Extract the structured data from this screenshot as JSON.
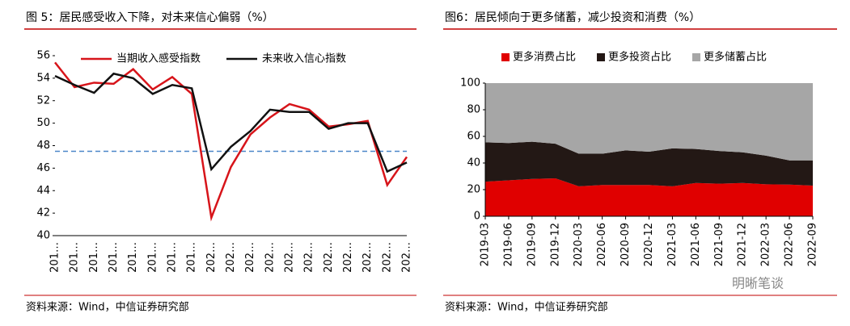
{
  "chart_data": [
    {
      "type": "line",
      "title": "图 5：居民感受收入下降，对未来信心偏弱（%）",
      "categories": [
        "201…",
        "201…",
        "201…",
        "201…",
        "201…",
        "201…",
        "201…",
        "201…",
        "202…",
        "202…",
        "202…",
        "202…",
        "202…",
        "202…",
        "202…",
        "202…",
        "202…",
        "202…",
        "202…"
      ],
      "series": [
        {
          "name": "当期收入感受指数",
          "color": "#d7141a",
          "values": [
            55.4,
            53.2,
            53.6,
            53.5,
            54.8,
            53.0,
            54.1,
            52.6,
            41.6,
            46.1,
            49.0,
            50.5,
            51.7,
            51.2,
            49.7,
            49.9,
            50.2,
            44.5,
            47.0
          ]
        },
        {
          "name": "未来收入信心指数",
          "color": "#111111",
          "values": [
            54.2,
            53.4,
            52.7,
            54.4,
            54.0,
            52.6,
            53.4,
            53.1,
            45.9,
            47.9,
            49.3,
            51.2,
            51.0,
            51.0,
            49.5,
            50.0,
            50.0,
            45.7,
            46.5
          ]
        }
      ],
      "reference_line": {
        "value": 47.5,
        "color": "#4a86c8"
      },
      "ylim": [
        40,
        56
      ],
      "yticks": [
        40,
        42,
        44,
        46,
        48,
        50,
        52,
        54,
        56
      ],
      "source": "资料来源：Wind，中信证券研究部"
    },
    {
      "type": "stacked_area",
      "title": "图6：居民倾向于更多储蓄，减少投资和消费（%）",
      "categories": [
        "2019-03",
        "2019-06",
        "2019-09",
        "2019-12",
        "2020-03",
        "2020-06",
        "2020-09",
        "2020-12",
        "2021-03",
        "2021-06",
        "2021-09",
        "2021-12",
        "2022-03",
        "2022-06",
        "2022-09"
      ],
      "series": [
        {
          "name": "更多消费占比",
          "color": "#e00000",
          "values": [
            26,
            27,
            28,
            28.5,
            22.5,
            23.5,
            23.5,
            23.5,
            22.5,
            25,
            24.5,
            25,
            24,
            23.8,
            23
          ]
        },
        {
          "name": "更多投资占比",
          "color": "#231815",
          "values": [
            29.5,
            28,
            28,
            26,
            24.5,
            23.5,
            26,
            25,
            28.5,
            25.5,
            24.5,
            23,
            21.5,
            18.2,
            19
          ]
        },
        {
          "name": "更多储蓄占比",
          "color": "#a6a6a6",
          "values": [
            44.5,
            45,
            44,
            45.5,
            53,
            53,
            50.5,
            51.5,
            49,
            49.5,
            51,
            52,
            54.5,
            58,
            58
          ]
        }
      ],
      "ylim": [
        0,
        100
      ],
      "yticks": [
        0,
        20,
        40,
        60,
        80,
        100
      ],
      "source": "资料来源：Wind，中信证券研究部"
    }
  ],
  "watermark": "明晰笔谈"
}
